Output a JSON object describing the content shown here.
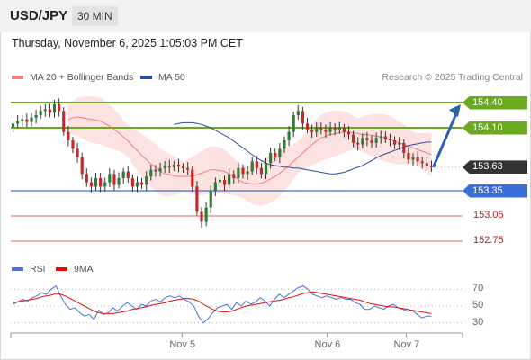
{
  "header": {
    "symbol": "USD/JPY",
    "timeframe": "30 MIN"
  },
  "timestamp": "Thursday, November 6, 2025 1:05:03 PM CET",
  "legend": {
    "ma20": {
      "label": "MA 20 + Bollinger Bands",
      "color": "#f08080"
    },
    "ma50": {
      "label": "MA 50",
      "color": "#2b4f9e"
    }
  },
  "credit": "Research © 2025 Trading Central",
  "rsi_legend": {
    "rsi": {
      "label": "RSI",
      "color": "#4a74d0"
    },
    "ma9": {
      "label": "9MA",
      "color": "#e01010"
    }
  },
  "colors": {
    "up": "#2e7d32",
    "down": "#c62828",
    "green_line": "#6aaa1e",
    "blue_line": "#3a6fd8",
    "red_line": "#e06060",
    "arrow": "#2c62b0",
    "current": "#333333"
  },
  "chart_data": {
    "type": "candlestick",
    "y_range": [
      152.6,
      154.55
    ],
    "levels": [
      {
        "kind": "resistance",
        "value": 154.4,
        "label": "154.40"
      },
      {
        "kind": "resistance",
        "value": 154.1,
        "label": "154.10"
      },
      {
        "kind": "current",
        "value": 153.63,
        "label": "153.63"
      },
      {
        "kind": "pivot",
        "value": 153.35,
        "label": "153.35"
      },
      {
        "kind": "support",
        "value": 153.05,
        "label": "153.05"
      },
      {
        "kind": "support",
        "value": 152.75,
        "label": "152.75"
      }
    ],
    "x_labels": [
      "Nov 5",
      "Nov 6",
      "Nov 7"
    ],
    "close": [
      154.15,
      154.18,
      154.2,
      154.17,
      154.22,
      154.25,
      154.3,
      154.32,
      154.28,
      154.38,
      154.3,
      154.05,
      153.95,
      153.85,
      153.75,
      153.55,
      153.45,
      153.4,
      153.5,
      153.4,
      153.45,
      153.55,
      153.42,
      153.5,
      153.58,
      153.5,
      153.4,
      153.45,
      153.42,
      153.52,
      153.6,
      153.58,
      153.62,
      153.65,
      153.63,
      153.66,
      153.64,
      153.62,
      153.6,
      153.4,
      153.1,
      152.98,
      153.15,
      153.35,
      153.45,
      153.48,
      153.42,
      153.55,
      153.5,
      153.62,
      153.55,
      153.58,
      153.7,
      153.62,
      153.55,
      153.68,
      153.8,
      153.75,
      153.85,
      153.95,
      154.05,
      154.25,
      154.3,
      154.15,
      154.08,
      154.05,
      154.1,
      154.08,
      154.05,
      154.1,
      154.08,
      154.1,
      154.05,
      154.02,
      153.92,
      153.9,
      153.98,
      153.95,
      153.92,
      153.98,
      154.0,
      153.96,
      153.95,
      153.9,
      153.92,
      153.8,
      153.72,
      153.75,
      153.7,
      153.68,
      153.65,
      153.63
    ],
    "ma20": [
      154.2,
      154.22,
      154.23,
      154.22,
      154.21,
      154.2,
      154.19,
      154.18,
      154.15,
      154.12,
      154.08,
      154.04,
      153.99,
      153.94,
      153.88,
      153.83,
      153.77,
      153.72,
      153.67,
      153.63,
      153.58,
      153.55,
      153.54,
      153.53,
      153.52,
      153.52,
      153.52,
      153.53,
      153.54,
      153.56,
      153.58,
      153.6,
      153.6,
      153.59,
      153.58,
      153.55,
      153.52,
      153.48,
      153.45,
      153.44,
      153.43,
      153.43,
      153.44,
      153.46,
      153.49,
      153.52,
      153.56,
      153.6,
      153.65,
      153.7,
      153.75,
      153.8,
      153.85,
      153.9,
      153.94,
      153.98,
      154.0,
      154.02,
      154.03,
      154.04,
      154.05,
      154.05,
      154.04,
      154.03,
      154.02,
      154.02,
      154.01,
      154.0,
      153.99,
      153.98,
      153.96,
      153.94,
      153.92,
      153.9,
      153.88,
      153.86,
      153.84,
      153.82,
      153.8,
      153.78
    ],
    "ma50": [
      154.14,
      154.15,
      154.16,
      154.16,
      154.16,
      154.15,
      154.14,
      154.12,
      154.1,
      154.07,
      154.04,
      154.01,
      153.98,
      153.94,
      153.9,
      153.86,
      153.82,
      153.78,
      153.74,
      153.71,
      153.68,
      153.66,
      153.65,
      153.64,
      153.63,
      153.63,
      153.62,
      153.62,
      153.61,
      153.6,
      153.59,
      153.58,
      153.57,
      153.56,
      153.55,
      153.55,
      153.56,
      153.57,
      153.59,
      153.61,
      153.63,
      153.65,
      153.68,
      153.71,
      153.74,
      153.77,
      153.79,
      153.81,
      153.83,
      153.85,
      153.87,
      153.89,
      153.9,
      153.91,
      153.92,
      153.93,
      153.93
    ],
    "rsi_axis": [
      70,
      50,
      30
    ],
    "rsi": [
      52,
      55,
      58,
      56,
      60,
      62,
      66,
      64,
      70,
      74,
      62,
      52,
      46,
      48,
      42,
      38,
      40,
      34,
      45,
      40,
      42,
      48,
      44,
      50,
      54,
      50,
      46,
      52,
      50,
      56,
      58,
      55,
      60,
      62,
      60,
      62,
      58,
      55,
      50,
      38,
      30,
      35,
      42,
      48,
      50,
      52,
      46,
      54,
      50,
      56,
      52,
      55,
      60,
      56,
      50,
      58,
      64,
      60,
      64,
      68,
      72,
      74,
      70,
      64,
      62,
      60,
      62,
      60,
      58,
      60,
      58,
      58,
      54,
      52,
      46,
      46,
      50,
      48,
      46,
      50,
      52,
      48,
      46,
      44,
      45,
      40,
      36,
      38,
      38
    ],
    "rsi_ma9": [
      54,
      55,
      56,
      57,
      58,
      59,
      61,
      62,
      63,
      65,
      64,
      62,
      59,
      56,
      53,
      50,
      47,
      44,
      42,
      41,
      41,
      41,
      42,
      43,
      44,
      46,
      47,
      48,
      49,
      51,
      52,
      53,
      54,
      56,
      57,
      58,
      59,
      59,
      58,
      56,
      52,
      49,
      46,
      44,
      43,
      43,
      44,
      46,
      48,
      50,
      51,
      52,
      53,
      54,
      55,
      56,
      57,
      58,
      60,
      61,
      63,
      65,
      66,
      67,
      66,
      65,
      64,
      63,
      62,
      61,
      60,
      59,
      58,
      57,
      55,
      53,
      52,
      51,
      50,
      49,
      49,
      48,
      47,
      46,
      45,
      44,
      43,
      42,
      41
    ]
  }
}
